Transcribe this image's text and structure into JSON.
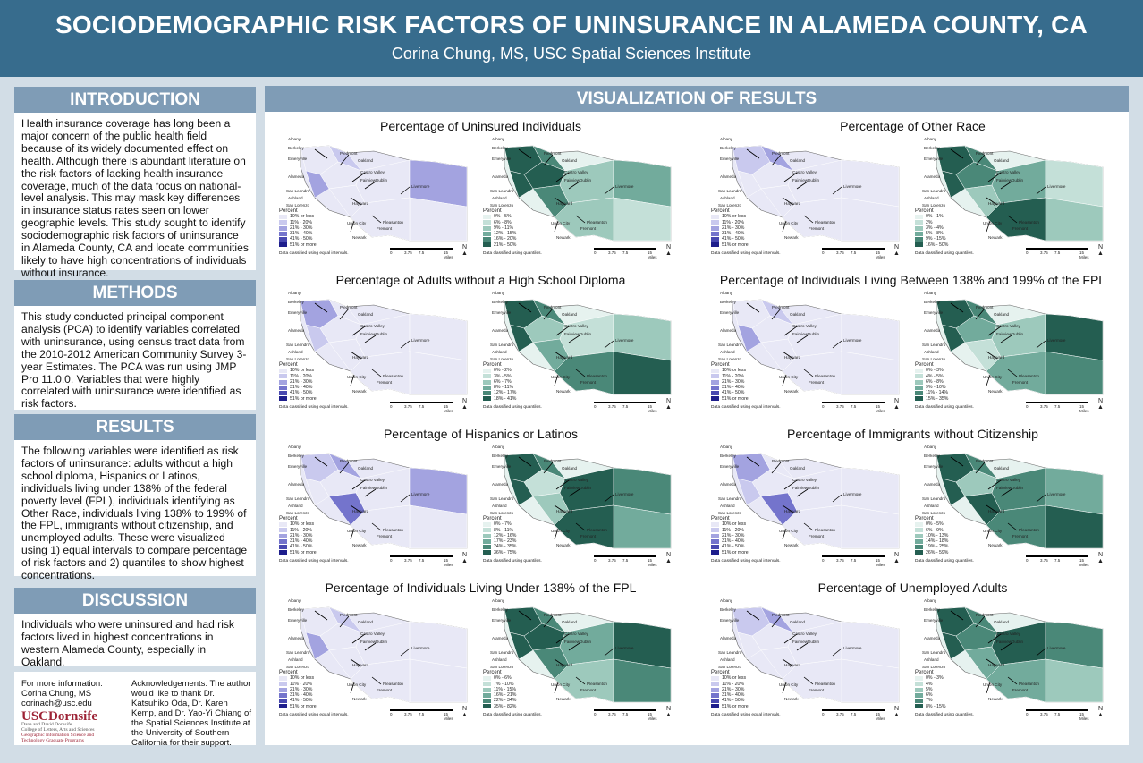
{
  "header": {
    "title": "SOCIODEMOGRAPHIC RISK FACTORS OF UNINSURANCE IN ALAMEDA COUNTY, CA",
    "author": "Corina Chung, MS, USC Spatial Sciences Institute"
  },
  "sections": {
    "introduction": {
      "heading": "INTRODUCTION",
      "text": "Health insurance coverage has long been a major concern of the public health field because of its widely documented effect on health. Although there is abundant literature on the risk factors of lacking health insurance coverage, much of the data focus on national-level analysis. This may mask key differences in insurance status rates seen on lower geographic levels. This study sought to identify sociodemographic risk factors of uninsurance in Alameda County, CA and locate communities likely to have high concentrations of individuals without insurance."
    },
    "methods": {
      "heading": "METHODS",
      "text": "This study conducted principal component analysis (PCA) to identify variables correlated with uninsurance, using census tract data from the 2010-2012 American Community Survey 3-year Estimates. The PCA was run using JMP Pro 11.0.0. Variables that were highly correlated with uninsurance were identified as risk factors."
    },
    "results": {
      "heading": "RESULTS",
      "text": "The following variables were identified as risk factors of uninsurance: adults without a high school diploma, Hispanics or Latinos, individuals living under 138% of the federal poverty level (FPL), individuals identifying as Other Race, individuals living 138% to 199% of the FPL, immigrants without citizenship, and unemployed adults. These were visualized using 1) equal intervals to compare percentage of risk factors and 2) quantiles to show highest concentrations."
    },
    "discussion": {
      "heading": "DISCUSSION",
      "text": "Individuals who were uninsured and had risk factors lived in highest concentrations in western Alameda County, especially in Oakland."
    }
  },
  "footer": {
    "info_label": "For more information:",
    "contact_name": "Corina Chung, MS",
    "contact_email": "corinach@usc.edu",
    "logo_text": "USCDornsife",
    "logo_sub1": "Dana and David Dornsife",
    "logo_sub2": "College of Letters, Arts and Sciences",
    "logo_sub3": "Geographic Information Science and",
    "logo_sub4": "Technology Graduate Programs",
    "acknowledgements": "Acknowledgements: The author would like to thank Dr. Katsuhiko Oda, Dr. Karen Kemp, and Dr. Yao-Yi Chiang of the Spatial Sciences Institute at the University of Southern California for their support."
  },
  "results_panel": {
    "heading": "VISUALIZATION OF RESULTS",
    "legend_title": "Percent",
    "note_equal": "Data classified using equal intervals.",
    "note_quantile": "Data classified using quantiles.",
    "scale_labels": [
      "0",
      "3.75",
      "7.5",
      "15 Miles"
    ],
    "north_label": "N",
    "colors": {
      "equal": [
        "#e8e8f6",
        "#c9c9ee",
        "#a3a3e0",
        "#7474cc",
        "#4848b0",
        "#1e1e8c"
      ],
      "quantile": [
        "#e6f2ef",
        "#c4e0d8",
        "#9dc9bc",
        "#72ab9c",
        "#4a8878",
        "#245e51"
      ]
    },
    "places": [
      "Albany",
      "Berkeley",
      "Piedmont",
      "Emeryville",
      "Oakland",
      "Castro Valley",
      "Alameda",
      "Fairview",
      "Dublin",
      "San Leandro",
      "Ashland",
      "Livermore",
      "San Lorenzo",
      "Hayward",
      "Pleasanton",
      "Union City",
      "Fremont",
      "Newark"
    ],
    "maps": [
      {
        "title": "Percentage of Uninsured Individuals",
        "equal": [
          "10% or less",
          "11% - 20%",
          "21% - 30%",
          "31% - 40%",
          "41% - 50%",
          "51% or more"
        ],
        "quantile": [
          "0% - 5%",
          "6% - 8%",
          "9% - 11%",
          "12% - 15%",
          "16% - 20%",
          "21% - 50%"
        ]
      },
      {
        "title": "Percentage of Other Race",
        "equal": [
          "10% or less",
          "11% - 20%",
          "21% - 30%",
          "31% - 40%",
          "41% - 50%",
          "51% or more"
        ],
        "quantile": [
          "0% - 1%",
          "2%",
          "3% - 4%",
          "5% - 8%",
          "9% - 15%",
          "16% - 50%"
        ]
      },
      {
        "title": "Percentage of Adults without a High School Diploma",
        "equal": [
          "10% or less",
          "11% - 20%",
          "21% - 30%",
          "31% - 40%",
          "41% - 50%",
          "51% or more"
        ],
        "quantile": [
          "0% - 2%",
          "3% - 5%",
          "6% - 7%",
          "8% - 11%",
          "12% - 17%",
          "18% - 41%"
        ]
      },
      {
        "title": "Percentage of Individuals Living Between 138% and 199% of the FPL",
        "equal": [
          "10% or less",
          "11% - 20%",
          "21% - 30%",
          "31% - 40%",
          "41% - 50%",
          "51% or more"
        ],
        "quantile": [
          "0% - 3%",
          "4% - 5%",
          "6% - 8%",
          "9% - 10%",
          "11% - 14%",
          "15% - 35%"
        ]
      },
      {
        "title": "Percentage of Hispanics or Latinos",
        "equal": [
          "10% or less",
          "11% - 20%",
          "21% - 30%",
          "31% - 40%",
          "41% - 50%",
          "51% or more"
        ],
        "quantile": [
          "0% - 7%",
          "8% - 11%",
          "12% - 16%",
          "17% - 23%",
          "24% - 35%",
          "36% - 75%"
        ]
      },
      {
        "title": "Percentage of Immigrants without Citizenship",
        "equal": [
          "10% or less",
          "11% - 20%",
          "21% - 30%",
          "31% - 40%",
          "41% - 50%",
          "51% or more"
        ],
        "quantile": [
          "0% - 5%",
          "6% - 9%",
          "10% - 13%",
          "14% - 18%",
          "19% - 25%",
          "26% - 59%"
        ]
      },
      {
        "title": "Percentage of Individuals Living Under 138% of the FPL",
        "equal": [
          "10% or less",
          "11% - 20%",
          "21% - 30%",
          "31% - 40%",
          "41% - 50%",
          "51% or more"
        ],
        "quantile": [
          "0% - 6%",
          "7% - 10%",
          "11% - 15%",
          "16% - 21%",
          "22% - 34%",
          "35% - 82%"
        ]
      },
      {
        "title": "Percentage of Unemployed Adults",
        "equal": [
          "10% or less",
          "11% - 20%",
          "21% - 30%",
          "31% - 40%",
          "41% - 50%",
          "51% or more"
        ],
        "quantile": [
          "0% - 3%",
          "4%",
          "5%",
          "6%",
          "7%",
          "8% - 15%"
        ]
      }
    ]
  }
}
